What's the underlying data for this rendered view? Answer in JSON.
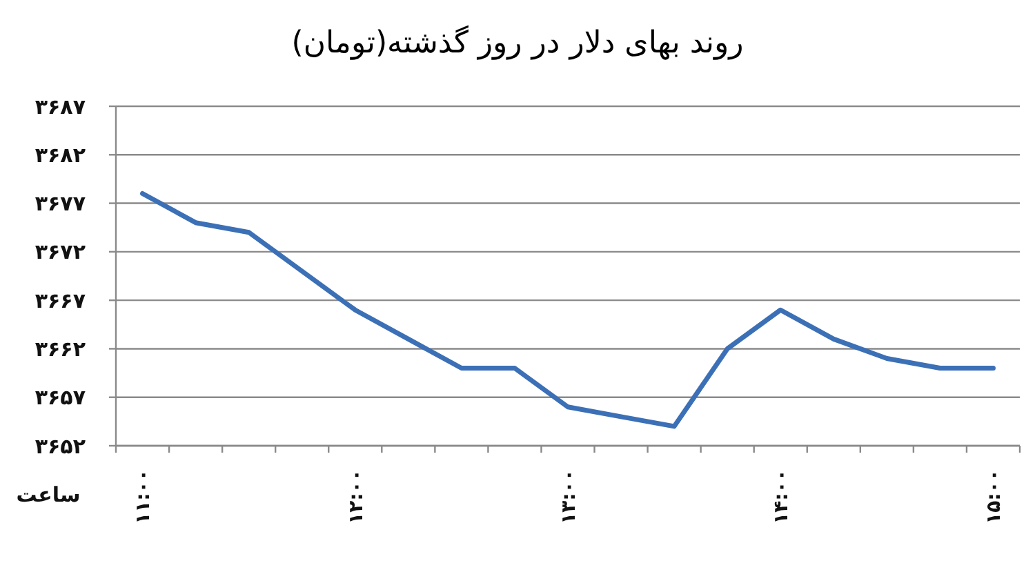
{
  "chart_data": {
    "type": "line",
    "title": "روند بهای دلار در روز گذشته(تومان)",
    "xlabel": "ساعت",
    "categories": [
      "۱۱:۰۰",
      null,
      null,
      null,
      "۱۲:۰۰",
      null,
      null,
      null,
      "۱۳:۰۰",
      null,
      null,
      null,
      "۱۴:۰۰",
      null,
      null,
      null,
      "۱۵:۰۰"
    ],
    "series": [
      {
        "color": "#3c70b6",
        "values": [
          3678,
          3675,
          3674,
          3670,
          3666,
          3663,
          3660,
          3660,
          3656,
          3655,
          3654,
          3662,
          3666,
          3663,
          3661,
          3660,
          3660
        ]
      }
    ],
    "ylim": [
      3652,
      3687
    ],
    "yticks": [
      {
        "value": 3652,
        "label": "۳۶۵۲"
      },
      {
        "value": 3657,
        "label": "۳۶۵۷"
      },
      {
        "value": 3662,
        "label": "۳۶۶۲"
      },
      {
        "value": 3667,
        "label": "۳۶۶۷"
      },
      {
        "value": 3672,
        "label": "۳۶۷۲"
      },
      {
        "value": 3677,
        "label": "۳۶۷۷"
      },
      {
        "value": 3682,
        "label": "۳۶۸۲"
      },
      {
        "value": 3687,
        "label": "۳۶۸۷"
      }
    ],
    "grid": "y",
    "marker": "none",
    "line_style": "solid"
  }
}
